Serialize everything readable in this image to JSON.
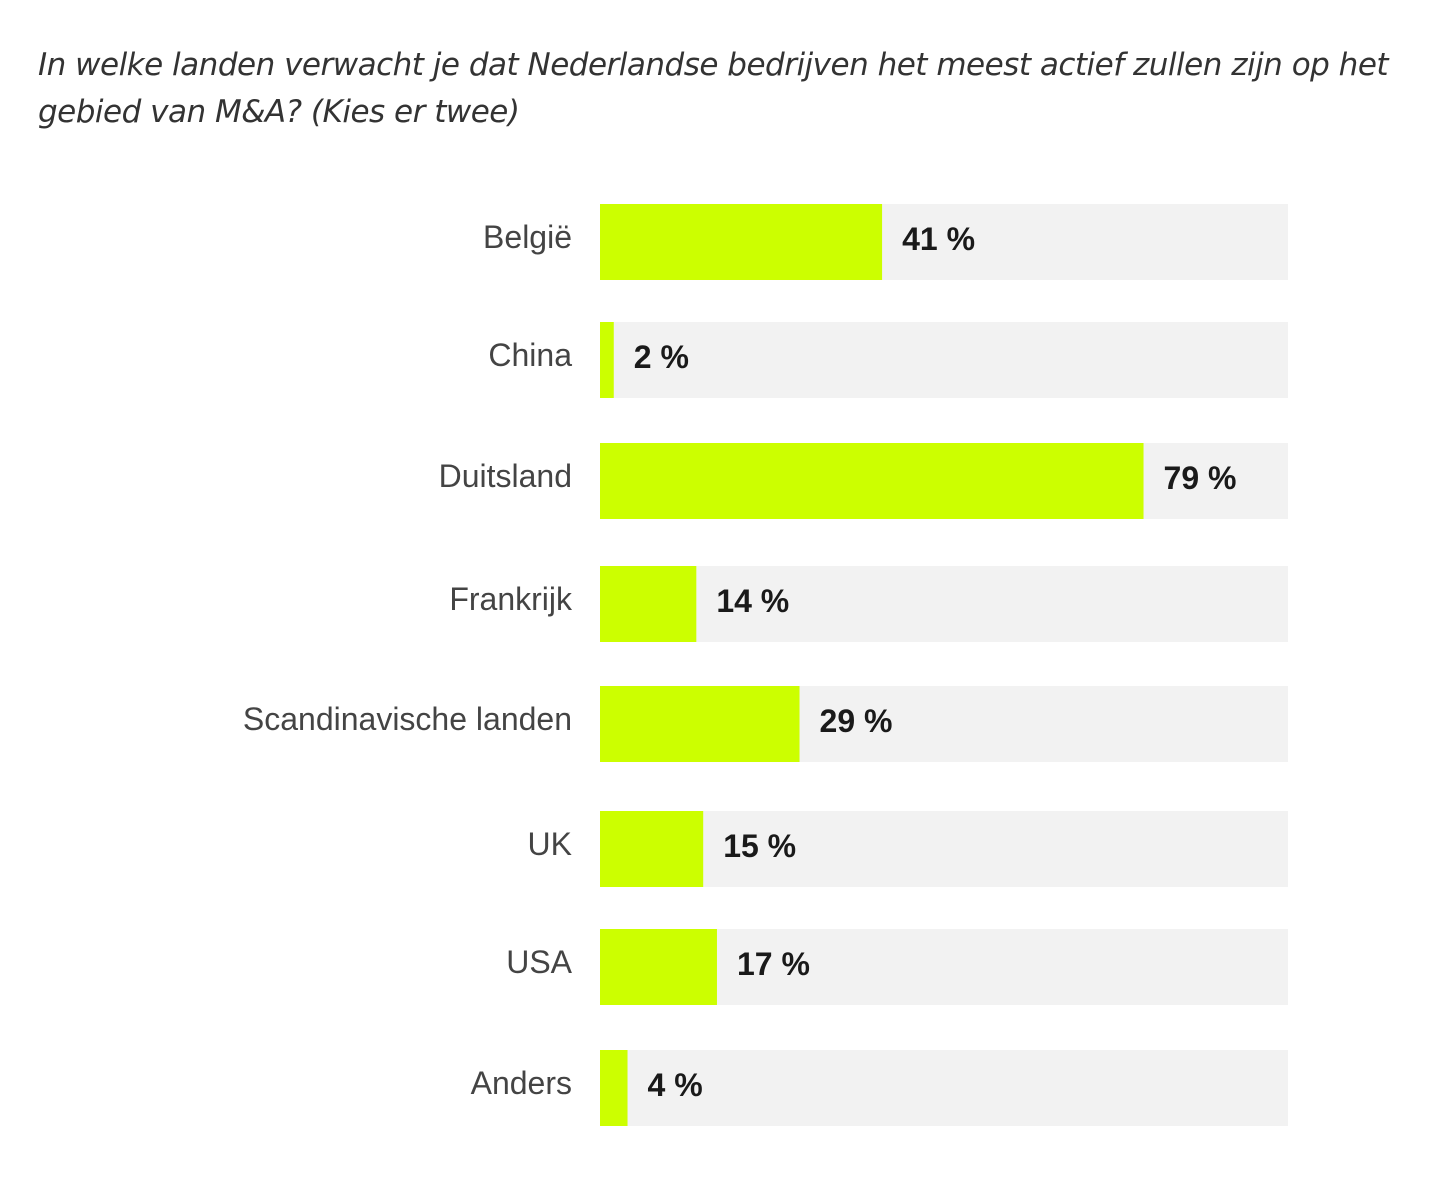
{
  "chart_data": {
    "type": "bar",
    "orientation": "horizontal",
    "title": "In welke landen verwacht je dat Nederlandse bedrijven het meest actief zullen zijn op het gebied van M&A? (Kies er twee)",
    "categories": [
      "België",
      "China",
      "Duitsland",
      "Frankrijk",
      "Scandinavische landen",
      "UK",
      "USA",
      "Anders"
    ],
    "values": [
      41,
      2,
      79,
      14,
      29,
      15,
      17,
      4
    ],
    "value_labels": [
      "41 %",
      "2 %",
      "79 %",
      "14 %",
      "29 %",
      "15 %",
      "17 %",
      "4 %"
    ],
    "xlim": [
      0,
      100
    ],
    "unit": "%",
    "grid": false,
    "colors": {
      "bar": "#CCFF00",
      "track": "#F2F2F2",
      "label": "#444444",
      "value": "#1A1A1A"
    }
  }
}
